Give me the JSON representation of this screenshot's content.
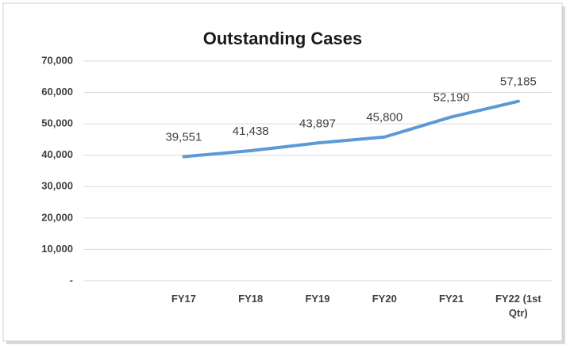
{
  "chart_data": {
    "type": "line",
    "title": "Outstanding Cases",
    "categories": [
      null,
      "FY17",
      "FY18",
      "FY19",
      "FY20",
      "FY21",
      "FY22 (1st Qtr)"
    ],
    "series": [
      {
        "name": "Outstanding Cases",
        "color": "#5b9bd5",
        "values": [
          null,
          39551,
          41438,
          43897,
          45800,
          52190,
          57185
        ],
        "value_labels": [
          null,
          "39,551",
          "41,438",
          "43,897",
          "45,800",
          "52,190",
          "57,185"
        ]
      }
    ],
    "ylim": [
      0,
      70000
    ],
    "yticks": [
      {
        "value": 0,
        "label": "-"
      },
      {
        "value": 10000,
        "label": "10,000"
      },
      {
        "value": 20000,
        "label": "20,000"
      },
      {
        "value": 30000,
        "label": "30,000"
      },
      {
        "value": 40000,
        "label": "40,000"
      },
      {
        "value": 50000,
        "label": "50,000"
      },
      {
        "value": 60000,
        "label": "60,000"
      },
      {
        "value": 70000,
        "label": "70,000"
      }
    ],
    "grid": true
  }
}
